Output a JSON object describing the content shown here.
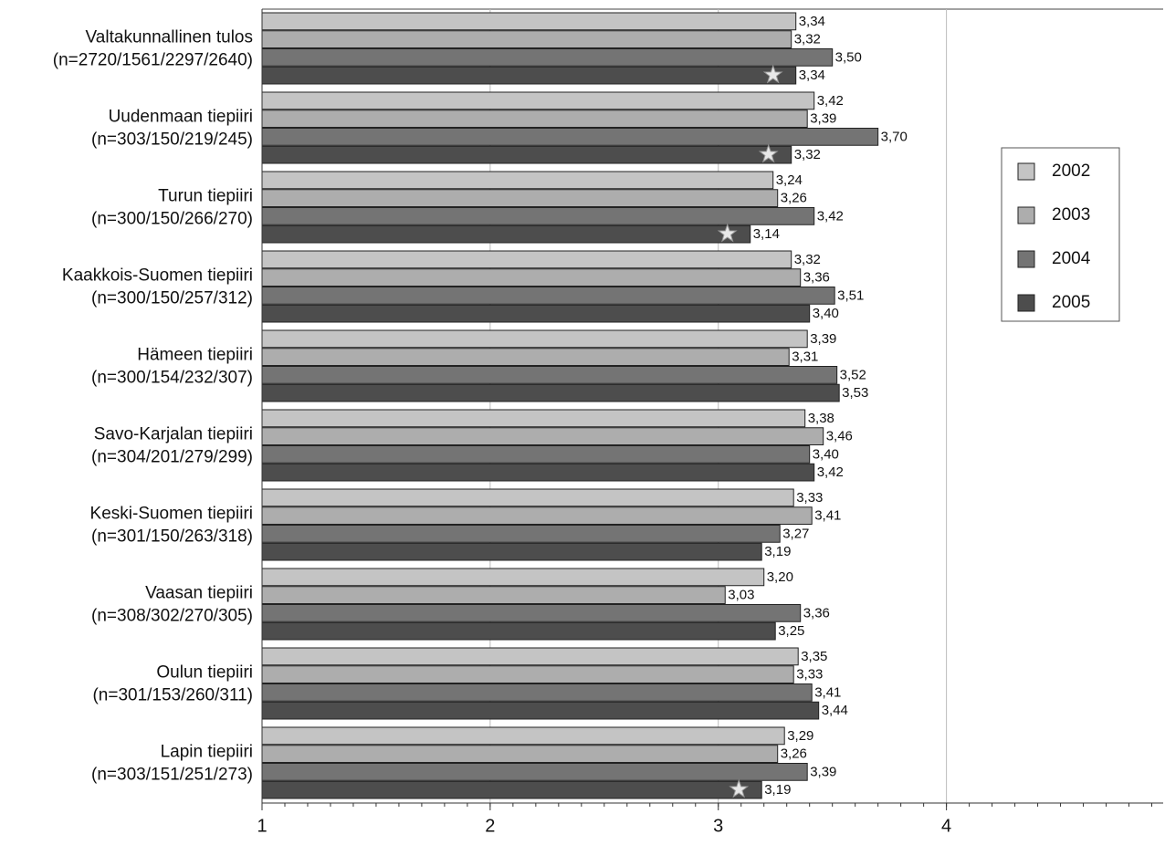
{
  "chart_data": {
    "type": "hbar",
    "categories": [
      [
        "Valtakunnallinen tulos",
        "(n=2720/1561/2297/2640)"
      ],
      [
        "Uudenmaan tiepiiri",
        "(n=303/150/219/245)"
      ],
      [
        "Turun tiepiiri",
        "(n=300/150/266/270)"
      ],
      [
        "Kaakkois-Suomen tiepiiri",
        "(n=300/150/257/312)"
      ],
      [
        "Hämeen tiepiiri",
        "(n=300/154/232/307)"
      ],
      [
        "Savo-Karjalan tiepiiri",
        "(n=304/201/279/299)"
      ],
      [
        "Keski-Suomen tiepiiri",
        "(n=301/150/263/318)"
      ],
      [
        "Vaasan tiepiiri",
        "(n=308/302/270/305)"
      ],
      [
        "Oulun tiepiiri",
        "(n=301/153/260/311)"
      ],
      [
        "Lapin tiepiiri",
        "(n=303/151/251/273)"
      ]
    ],
    "series": [
      {
        "name": "2002",
        "color": "#c4c4c4",
        "values": [
          3.34,
          3.42,
          3.24,
          3.32,
          3.39,
          3.38,
          3.33,
          3.2,
          3.35,
          3.29
        ],
        "value_labels": [
          "3,34",
          "3,42",
          "3,24",
          "3,32",
          "3,39",
          "3,38",
          "3,33",
          "3,20",
          "3,35",
          "3,29"
        ]
      },
      {
        "name": "2003",
        "color": "#adadad",
        "values": [
          3.32,
          3.39,
          3.26,
          3.36,
          3.31,
          3.46,
          3.41,
          3.03,
          3.33,
          3.26
        ],
        "value_labels": [
          "3,32",
          "3,39",
          "3,26",
          "3,36",
          "3,31",
          "3,46",
          "3,41",
          "3,03",
          "3,33",
          "3,26"
        ]
      },
      {
        "name": "2004",
        "color": "#747474",
        "values": [
          3.5,
          3.7,
          3.42,
          3.51,
          3.52,
          3.4,
          3.27,
          3.36,
          3.41,
          3.39
        ],
        "value_labels": [
          "3,50",
          "3,70",
          "3,42",
          "3,51",
          "3,52",
          "3,40",
          "3,27",
          "3,36",
          "3,41",
          "3,39"
        ]
      },
      {
        "name": "2005",
        "color": "#4d4d4d",
        "values": [
          3.34,
          3.32,
          3.14,
          3.4,
          3.53,
          3.42,
          3.19,
          3.25,
          3.44,
          3.19
        ],
        "value_labels": [
          "3,34",
          "3,32",
          "3,14",
          "3,40",
          "3,53",
          "3,42",
          "3,19",
          "3,25",
          "3,44",
          "3,19"
        ],
        "starred": [
          true,
          true,
          true,
          false,
          false,
          false,
          false,
          false,
          false,
          true
        ]
      }
    ],
    "xlim": [
      1,
      4.95
    ],
    "xticks": [
      1,
      2,
      3,
      4
    ],
    "grid": true,
    "legend": "right"
  }
}
